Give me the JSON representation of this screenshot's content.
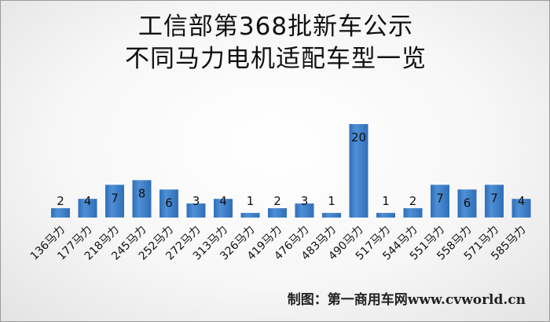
{
  "title_line1": "工信部第368批新车公示",
  "title_line2": "不同马力电机适配车型一览",
  "footer": "制图：第一商用车网www.cvworld.cn",
  "colors": {
    "bar": "#4f8fd5",
    "bar_dark": "#2f6fb8",
    "text": "#111111"
  },
  "chart_data": {
    "type": "bar",
    "title": "工信部第368批新车公示 不同马力电机适配车型一览",
    "categories": [
      "136马力",
      "177马力",
      "218马力",
      "245马力",
      "252马力",
      "272马力",
      "313马力",
      "326马力",
      "419马力",
      "476马力",
      "483马力",
      "490马力",
      "517马力",
      "544马力",
      "551马力",
      "558马力",
      "571马力",
      "585马力"
    ],
    "values": [
      2,
      4,
      7,
      8,
      6,
      3,
      4,
      1,
      2,
      3,
      1,
      20,
      1,
      2,
      7,
      6,
      7,
      4
    ],
    "xlabel": "",
    "ylabel": "",
    "ylim": [
      0,
      20
    ],
    "grid": false,
    "legend": "none",
    "data_labels": true
  }
}
